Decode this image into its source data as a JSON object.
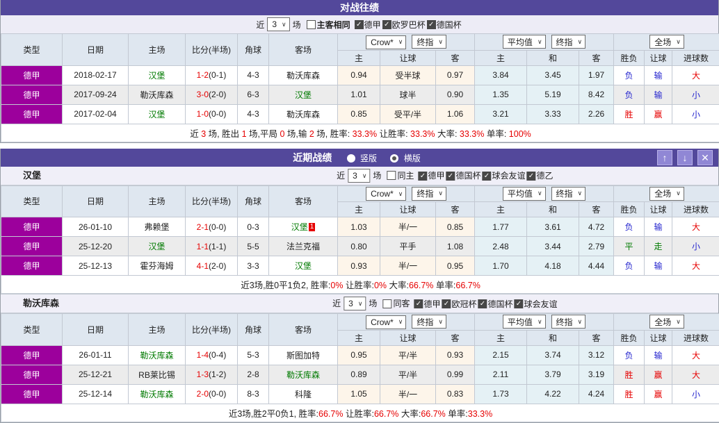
{
  "colors": {
    "banner": "#53489B",
    "magenta": "#9C009C",
    "red": "#E60000",
    "blue": "#2424CE",
    "green": "#007A00",
    "headbg": "#DFE7F0",
    "stripe": "#ECECEC",
    "cream": "#FDF5EA",
    "lightblue": "#E5F1F5",
    "filterbg": "#EDECF6",
    "teambg": "#F0EFF8",
    "btn": "#9087D5",
    "btnborder": "#B9B2E8"
  },
  "icons": {
    "chevron": "∨",
    "up": "↑",
    "down": "↓",
    "close": "✕",
    "check": "✓"
  },
  "headers": {
    "left": [
      "类型",
      "日期",
      "主场",
      "比分(半场)",
      "角球",
      "客场"
    ],
    "crow_selects": [
      "Crow*",
      "终指"
    ],
    "avg_selects": [
      "平均值",
      "终指"
    ],
    "full_select": "全场",
    "crow_sub": [
      "主",
      "让球",
      "客"
    ],
    "avg_sub": [
      "主",
      "和",
      "客"
    ],
    "result_sub": [
      "胜负",
      "让球",
      "进球数"
    ]
  },
  "s1": {
    "title": "对战往绩",
    "filter": {
      "near": "近",
      "count": "3",
      "matches": "场",
      "toggle": "主客相同",
      "leagues": [
        "德甲",
        "欧罗巴杯",
        "德国杯"
      ]
    },
    "rows": [
      {
        "league": "德甲",
        "date": "2018-02-17",
        "home": "汉堡",
        "home_green": true,
        "home_badge": "",
        "score": "1-2",
        "half": "(0-1)",
        "corner": "4-3",
        "away": "勒沃库森",
        "away_green": false,
        "away_badge": "",
        "crow": [
          "0.94",
          "受半球",
          "0.97"
        ],
        "avg": [
          "3.84",
          "3.45",
          "1.97"
        ],
        "results": [
          [
            "负",
            "blue"
          ],
          [
            "输",
            "blue"
          ],
          [
            "大",
            "red"
          ]
        ]
      },
      {
        "league": "德甲",
        "date": "2017-09-24",
        "home": "勒沃库森",
        "home_green": false,
        "home_badge": "",
        "score": "3-0",
        "half": "(2-0)",
        "corner": "6-3",
        "away": "汉堡",
        "away_green": true,
        "away_badge": "",
        "crow": [
          "1.01",
          "球半",
          "0.90"
        ],
        "avg": [
          "1.35",
          "5.19",
          "8.42"
        ],
        "results": [
          [
            "负",
            "blue"
          ],
          [
            "输",
            "blue"
          ],
          [
            "小",
            "blue"
          ]
        ]
      },
      {
        "league": "德甲",
        "date": "2017-02-04",
        "home": "汉堡",
        "home_green": true,
        "home_badge": "",
        "score": "1-0",
        "half": "(0-0)",
        "corner": "4-3",
        "away": "勒沃库森",
        "away_green": false,
        "away_badge": "",
        "crow": [
          "0.85",
          "受平/半",
          "1.06"
        ],
        "avg": [
          "3.21",
          "3.33",
          "2.26"
        ],
        "results": [
          [
            "胜",
            "red"
          ],
          [
            "赢",
            "red"
          ],
          [
            "小",
            "blue"
          ]
        ]
      }
    ],
    "summary": [
      [
        "近 ",
        0
      ],
      [
        "3",
        1
      ],
      [
        " 场, 胜出 ",
        0
      ],
      [
        "1",
        1
      ],
      [
        " 场,平局 ",
        0
      ],
      [
        "0",
        1
      ],
      [
        " 场,输 ",
        0
      ],
      [
        "2",
        1
      ],
      [
        " 场, 胜率: ",
        0
      ],
      [
        "33.3%",
        1
      ],
      [
        " 让胜率: ",
        0
      ],
      [
        "33.3%",
        1
      ],
      [
        " 大率: ",
        0
      ],
      [
        "33.3%",
        1
      ],
      [
        " 单率: ",
        0
      ],
      [
        "100%",
        1
      ]
    ]
  },
  "s2": {
    "title": "近期战绩",
    "radios": [
      {
        "label": "竖版",
        "checked": false
      },
      {
        "label": "横版",
        "checked": true
      }
    ],
    "teams": [
      {
        "name": "汉堡",
        "filter": {
          "near": "近",
          "count": "3",
          "matches": "场",
          "toggle": "同主",
          "leagues": [
            "德甲",
            "德国杯",
            "球会友谊",
            "德乙"
          ]
        },
        "rows": [
          {
            "league": "德甲",
            "date": "26-01-10",
            "home": "弗赖堡",
            "home_green": false,
            "home_badge": "",
            "score": "2-1",
            "half": "(0-0)",
            "corner": "0-3",
            "away": "汉堡",
            "away_green": true,
            "away_badge": "1",
            "crow": [
              "1.03",
              "半/一",
              "0.85"
            ],
            "avg": [
              "1.77",
              "3.61",
              "4.72"
            ],
            "results": [
              [
                "负",
                "blue"
              ],
              [
                "输",
                "blue"
              ],
              [
                "大",
                "red"
              ]
            ]
          },
          {
            "league": "德甲",
            "date": "25-12-20",
            "home": "汉堡",
            "home_green": true,
            "home_badge": "",
            "score": "1-1",
            "half": "(1-1)",
            "corner": "5-5",
            "away": "法兰克福",
            "away_green": false,
            "away_badge": "",
            "crow": [
              "0.80",
              "平手",
              "1.08"
            ],
            "avg": [
              "2.48",
              "3.44",
              "2.79"
            ],
            "results": [
              [
                "平",
                "green"
              ],
              [
                "走",
                "green"
              ],
              [
                "小",
                "blue"
              ]
            ]
          },
          {
            "league": "德甲",
            "date": "25-12-13",
            "home": "霍芬海姆",
            "home_green": false,
            "home_badge": "",
            "score": "4-1",
            "half": "(2-0)",
            "corner": "3-3",
            "away": "汉堡",
            "away_green": true,
            "away_badge": "",
            "crow": [
              "0.93",
              "半/一",
              "0.95"
            ],
            "avg": [
              "1.70",
              "4.18",
              "4.44"
            ],
            "results": [
              [
                "负",
                "blue"
              ],
              [
                "输",
                "blue"
              ],
              [
                "大",
                "red"
              ]
            ]
          }
        ],
        "summary": [
          [
            "近3场,胜0平1负2, 胜率:",
            0
          ],
          [
            "0%",
            1
          ],
          [
            " 让胜率:",
            0
          ],
          [
            "0%",
            1
          ],
          [
            " 大率:",
            0
          ],
          [
            "66.7%",
            1
          ],
          [
            " 单率:",
            0
          ],
          [
            "66.7%",
            1
          ]
        ]
      },
      {
        "name": "勒沃库森",
        "filter": {
          "near": "近",
          "count": "3",
          "matches": "场",
          "toggle": "同客",
          "leagues": [
            "德甲",
            "欧冠杯",
            "德国杯",
            "球会友谊"
          ]
        },
        "rows": [
          {
            "league": "德甲",
            "date": "26-01-11",
            "home": "勒沃库森",
            "home_green": true,
            "home_badge": "",
            "score": "1-4",
            "half": "(0-4)",
            "corner": "5-3",
            "away": "斯图加特",
            "away_green": false,
            "away_badge": "",
            "crow": [
              "0.95",
              "平/半",
              "0.93"
            ],
            "avg": [
              "2.15",
              "3.74",
              "3.12"
            ],
            "results": [
              [
                "负",
                "blue"
              ],
              [
                "输",
                "blue"
              ],
              [
                "大",
                "red"
              ]
            ]
          },
          {
            "league": "德甲",
            "date": "25-12-21",
            "home": "RB莱比锡",
            "home_green": false,
            "home_badge": "",
            "score": "1-3",
            "half": "(1-2)",
            "corner": "2-8",
            "away": "勒沃库森",
            "away_green": true,
            "away_badge": "",
            "crow": [
              "0.89",
              "平/半",
              "0.99"
            ],
            "avg": [
              "2.11",
              "3.79",
              "3.19"
            ],
            "results": [
              [
                "胜",
                "red"
              ],
              [
                "赢",
                "red"
              ],
              [
                "大",
                "red"
              ]
            ]
          },
          {
            "league": "德甲",
            "date": "25-12-14",
            "home": "勒沃库森",
            "home_green": true,
            "home_badge": "",
            "score": "2-0",
            "half": "(0-0)",
            "corner": "8-3",
            "away": "科隆",
            "away_green": false,
            "away_badge": "",
            "crow": [
              "1.05",
              "半/一",
              "0.83"
            ],
            "avg": [
              "1.73",
              "4.22",
              "4.24"
            ],
            "results": [
              [
                "胜",
                "red"
              ],
              [
                "赢",
                "red"
              ],
              [
                "小",
                "blue"
              ]
            ]
          }
        ],
        "summary": [
          [
            "近3场,胜2平0负1, 胜率:",
            0
          ],
          [
            "66.7%",
            1
          ],
          [
            " 让胜率:",
            0
          ],
          [
            "66.7%",
            1
          ],
          [
            " 大率:",
            0
          ],
          [
            "66.7%",
            1
          ],
          [
            " 单率:",
            0
          ],
          [
            "33.3%",
            1
          ]
        ]
      }
    ]
  }
}
